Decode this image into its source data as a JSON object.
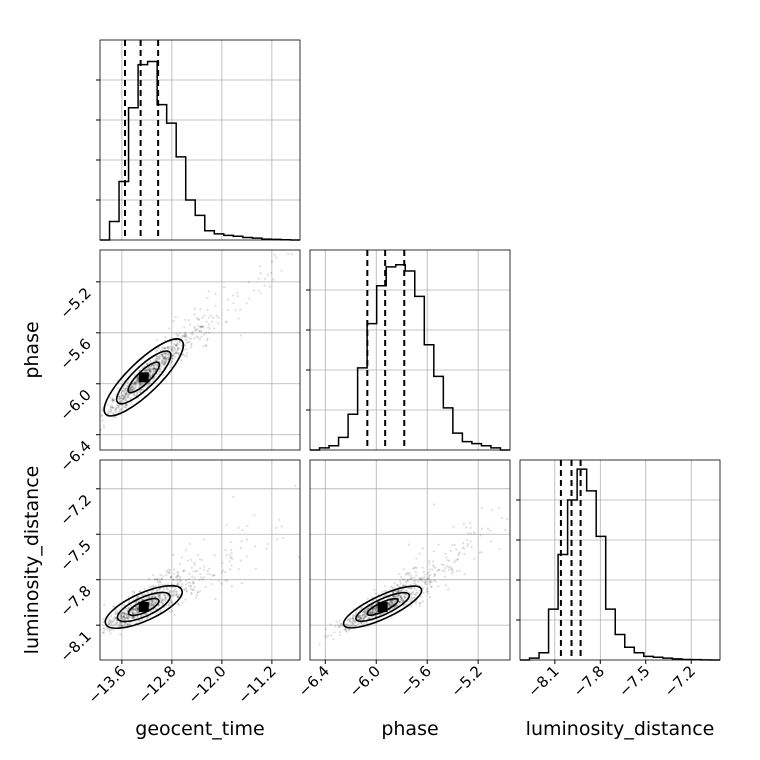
{
  "chart_data": {
    "type": "corner",
    "parameters": [
      "geocent_time",
      "phase",
      "luminosity_distance"
    ],
    "ranges": {
      "geocent_time": [
        -13.95,
        -10.75
      ],
      "phase": [
        -6.52,
        -4.95
      ],
      "luminosity_distance": [
        -8.33,
        -7.01
      ]
    },
    "ticks": {
      "geocent_time": {
        "values": [
          -13.6,
          -12.8,
          -12.0,
          -11.2
        ],
        "labels": [
          "−13.6",
          "−12.8",
          "−12.0",
          "−11.2"
        ]
      },
      "phase": {
        "values": [
          -6.4,
          -6.0,
          -5.6,
          -5.2
        ],
        "labels": [
          "−6.4",
          "−6.0",
          "−5.6",
          "−5.2"
        ]
      },
      "luminosity_distance": {
        "values": [
          -8.1,
          -7.8,
          -7.5,
          -7.2
        ],
        "labels": [
          "−8.1",
          "−7.8",
          "−7.5",
          "−7.2"
        ]
      }
    },
    "quantiles": {
      "geocent_time": [
        -13.55,
        -13.3,
        -13.02
      ],
      "phase": [
        -6.07,
        -5.93,
        -5.78
      ],
      "luminosity_distance": [
        -8.06,
        -7.99,
        -7.93
      ]
    },
    "histograms": {
      "geocent_time": [
        0,
        6,
        19,
        43,
        57,
        58,
        44,
        38,
        27,
        13,
        8,
        3,
        2,
        1.5,
        1.2,
        0.8,
        0.6,
        0.3,
        0.2,
        0.1,
        0
      ],
      "phase": [
        0,
        1,
        2,
        6,
        17,
        39,
        60,
        78,
        87,
        88,
        85,
        73,
        50,
        35,
        20,
        8,
        4,
        3,
        2,
        1,
        0
      ],
      "luminosity_distance": [
        0,
        1,
        4,
        28,
        58,
        88,
        105,
        93,
        68,
        28,
        14,
        7,
        4,
        2,
        1.5,
        1,
        0.6,
        0.3,
        0.2,
        0.1,
        0
      ]
    },
    "histogram_ymax": {
      "geocent_time": 65,
      "phase": 95,
      "luminosity_distance": 110
    },
    "correlations": {
      "phase_vs_geocent_time": 0.95,
      "luminosity_distance_vs_geocent_time": 0.85,
      "luminosity_distance_vs_phase": 0.9
    },
    "grid": true
  }
}
